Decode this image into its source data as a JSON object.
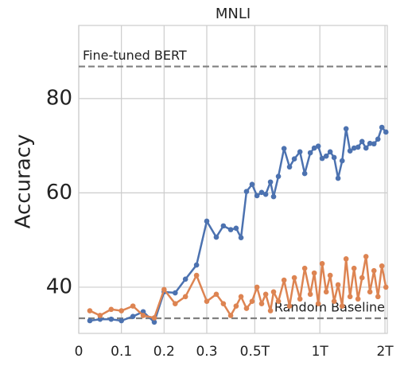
{
  "chart_data": {
    "type": "line",
    "title": "MNLI",
    "ylabel": "Accuracy",
    "x": [
      0.026,
      0.05,
      0.076,
      0.1,
      0.127,
      0.151,
      0.177,
      0.2,
      0.226,
      0.25,
      0.276,
      0.3,
      0.332,
      0.358,
      0.387,
      0.41,
      0.432,
      0.458,
      0.486,
      0.512,
      0.538,
      0.562,
      0.591,
      0.611,
      0.643,
      0.683,
      0.724,
      0.762,
      0.809,
      0.851,
      0.903,
      0.942,
      0.983,
      1.025,
      1.07,
      1.116,
      1.164,
      1.214,
      1.268,
      1.322,
      1.379,
      1.439,
      1.501,
      1.567,
      1.634,
      1.704,
      1.779,
      1.856,
      1.935,
      2.02
    ],
    "series": [
      {
        "color": "#4c72b0",
        "values": [
          32.9,
          33.2,
          33.2,
          32.9,
          33.8,
          34.8,
          32.6,
          39.0,
          38.8,
          41.7,
          44.7,
          54.0,
          50.6,
          53.0,
          52.2,
          52.5,
          50.5,
          60.3,
          61.8,
          59.4,
          60.1,
          59.7,
          62.3,
          59.2,
          63.5,
          69.4,
          65.5,
          67.2,
          68.7,
          64.1,
          68.5,
          69.5,
          69.9,
          67.3,
          67.8,
          68.7,
          67.5,
          63.1,
          66.8,
          73.6,
          68.9,
          69.5,
          69.7,
          70.9,
          69.5,
          70.5,
          70.4,
          71.4,
          73.9,
          72.9
        ]
      },
      {
        "color": "#dd8452",
        "values": [
          35.0,
          34.0,
          35.3,
          35.0,
          36.0,
          34.0,
          33.5,
          39.5,
          36.5,
          38.0,
          42.5,
          37.0,
          38.5,
          36.5,
          34.0,
          36.0,
          38.0,
          35.5,
          37.0,
          40.0,
          36.5,
          38.5,
          35.0,
          39.0,
          37.0,
          41.5,
          36.0,
          42.0,
          37.5,
          44.0,
          38.5,
          43.0,
          36.5,
          45.0,
          39.0,
          42.5,
          37.0,
          40.5,
          36.0,
          46.0,
          38.0,
          44.0,
          37.5,
          42.0,
          46.5,
          39.0,
          43.5,
          38.0,
          44.5,
          40.0
        ]
      }
    ],
    "reference_lines": [
      {
        "label": "Fine-tuned BERT",
        "value": 86.8,
        "color": "#808080"
      },
      {
        "label": "Random Baseline",
        "value": 33.4,
        "color": "#808080"
      }
    ],
    "xscale": "symlog",
    "linthresh": 0.3,
    "xlim": [
      0,
      2.05
    ],
    "xticks": [
      0,
      0.1,
      0.2,
      0.3,
      {
        "value": 0.5,
        "label": "0.5T"
      },
      {
        "value": 1,
        "label": "1T"
      },
      {
        "value": 2,
        "label": "2T"
      }
    ],
    "ylim": [
      30.2,
      95.5
    ],
    "yticks": [
      40,
      60,
      80
    ],
    "grid": true
  }
}
